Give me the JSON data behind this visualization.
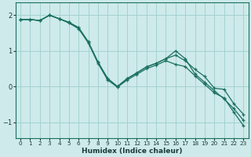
{
  "xlabel": "Humidex (Indice chaleur)",
  "bg_color": "#ceeaea",
  "grid_color": "#9ecece",
  "line_color": "#1a7060",
  "xlim": [
    -0.5,
    23.5
  ],
  "ylim": [
    -1.45,
    2.35
  ],
  "xticks": [
    0,
    1,
    2,
    3,
    4,
    5,
    6,
    7,
    8,
    9,
    10,
    11,
    12,
    13,
    14,
    15,
    16,
    17,
    18,
    19,
    20,
    21,
    22,
    23
  ],
  "yticks": [
    -1,
    0,
    1,
    2
  ],
  "line1_x": [
    0,
    1,
    2,
    3,
    4,
    5,
    6,
    7,
    8,
    9,
    10,
    11,
    12,
    13,
    14,
    15,
    16,
    17,
    18,
    19,
    20,
    21,
    22,
    23
  ],
  "line1_y": [
    1.88,
    1.88,
    1.85,
    2.0,
    1.9,
    1.8,
    1.65,
    1.25,
    0.68,
    0.22,
    0.0,
    0.22,
    0.38,
    0.55,
    0.65,
    0.78,
    0.88,
    0.72,
    0.48,
    0.28,
    -0.05,
    -0.08,
    -0.48,
    -0.78
  ],
  "line2_x": [
    0,
    1,
    2,
    3,
    4,
    5,
    6,
    7,
    8,
    9,
    10,
    11,
    12,
    13,
    14,
    15,
    16,
    17,
    18,
    19,
    20,
    21,
    22,
    23
  ],
  "line2_y": [
    1.88,
    1.88,
    1.85,
    2.0,
    1.9,
    1.8,
    1.65,
    1.25,
    0.68,
    0.22,
    0.0,
    0.22,
    0.38,
    0.55,
    0.65,
    0.78,
    1.0,
    0.78,
    0.35,
    0.12,
    -0.12,
    -0.35,
    -0.62,
    -0.95
  ],
  "line3_x": [
    0,
    1,
    2,
    3,
    4,
    5,
    6,
    7,
    8,
    9,
    10,
    11,
    12,
    13,
    14,
    15,
    16,
    17,
    18,
    19,
    20,
    21,
    22,
    23
  ],
  "line3_y": [
    1.88,
    1.88,
    1.85,
    2.0,
    1.9,
    1.78,
    1.62,
    1.22,
    0.65,
    0.18,
    -0.02,
    0.18,
    0.34,
    0.5,
    0.6,
    0.72,
    0.62,
    0.56,
    0.3,
    0.06,
    -0.18,
    -0.32,
    -0.72,
    -1.1
  ]
}
